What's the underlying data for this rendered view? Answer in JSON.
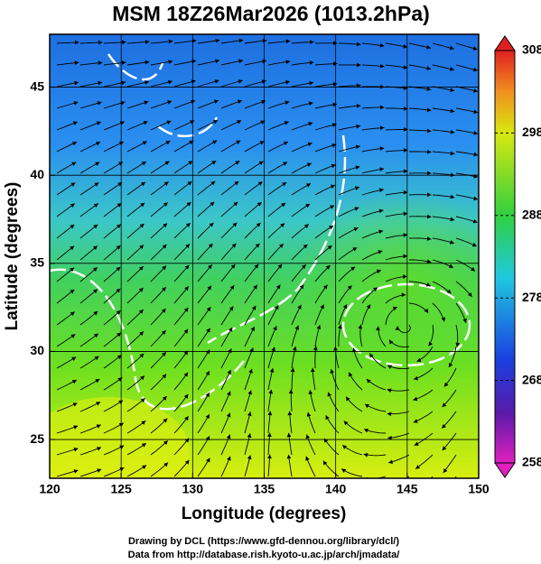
{
  "chart_data": {
    "type": "map",
    "title": "MSM 18Z26Mar2026 (1013.2hPa)",
    "xlabel": "Longitude (degrees)",
    "ylabel": "Latitude  (degrees)",
    "xlim": [
      120,
      150
    ],
    "ylim": [
      22.8,
      48
    ],
    "xticks": [
      120,
      125,
      130,
      135,
      140,
      145,
      150
    ],
    "yticks": [
      25,
      30,
      35,
      40,
      45
    ],
    "grid": true,
    "colorbar": {
      "lim": [
        258,
        308
      ],
      "ticks": [
        258,
        268,
        278,
        288,
        298,
        308
      ]
    },
    "footer": [
      "Drawing by DCL (https://www.gfd-dennou.org/library/dcl/)",
      "Data from http://database.rish.kyoto-u.ac.jp/arch/jmadata/"
    ]
  }
}
